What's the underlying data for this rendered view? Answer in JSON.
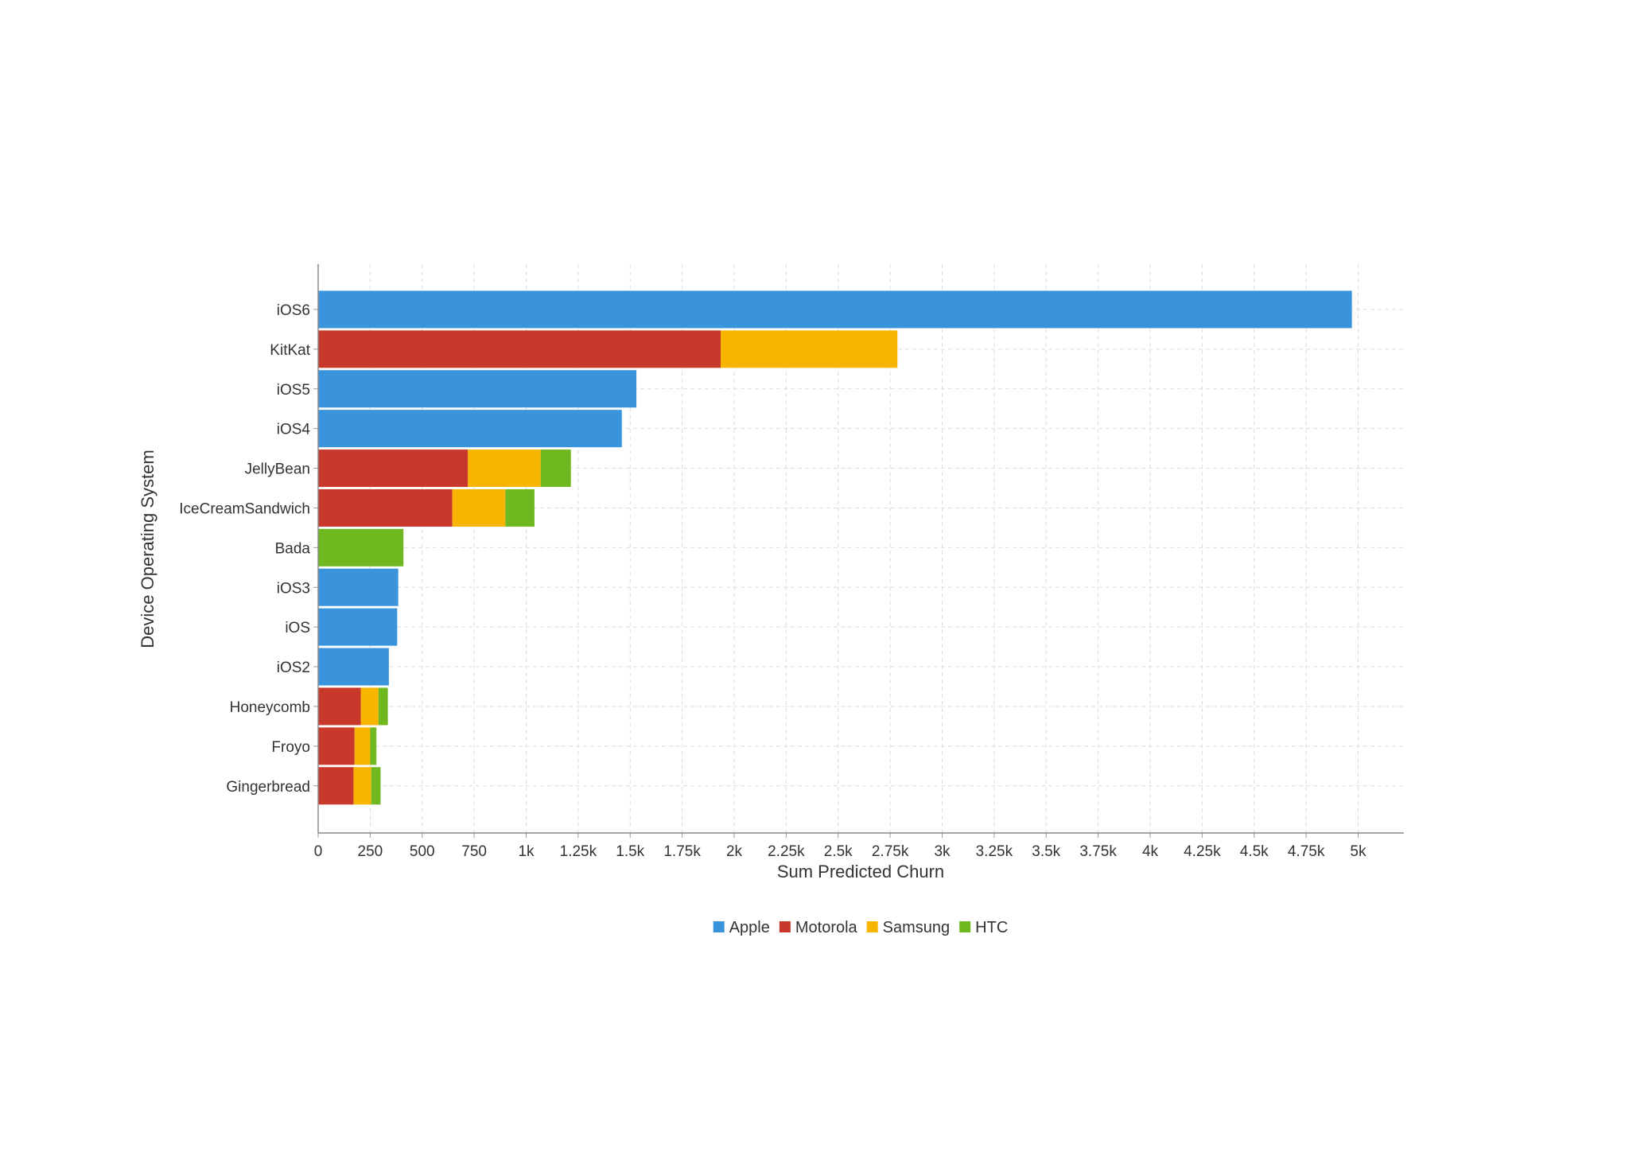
{
  "chart_data": {
    "type": "bar",
    "orientation": "horizontal",
    "stacked": true,
    "title": "",
    "xlabel": "Sum Predicted Churn",
    "ylabel": "Device Operating System",
    "xlim": [
      0,
      5220
    ],
    "xticks": [
      {
        "value": 0,
        "label": "0"
      },
      {
        "value": 250,
        "label": "250"
      },
      {
        "value": 500,
        "label": "500"
      },
      {
        "value": 750,
        "label": "750"
      },
      {
        "value": 1000,
        "label": "1k"
      },
      {
        "value": 1250,
        "label": "1.25k"
      },
      {
        "value": 1500,
        "label": "1.5k"
      },
      {
        "value": 1750,
        "label": "1.75k"
      },
      {
        "value": 2000,
        "label": "2k"
      },
      {
        "value": 2250,
        "label": "2.25k"
      },
      {
        "value": 2500,
        "label": "2.5k"
      },
      {
        "value": 2750,
        "label": "2.75k"
      },
      {
        "value": 3000,
        "label": "3k"
      },
      {
        "value": 3250,
        "label": "3.25k"
      },
      {
        "value": 3500,
        "label": "3.5k"
      },
      {
        "value": 3750,
        "label": "3.75k"
      },
      {
        "value": 4000,
        "label": "4k"
      },
      {
        "value": 4250,
        "label": "4.25k"
      },
      {
        "value": 4500,
        "label": "4.5k"
      },
      {
        "value": 4750,
        "label": "4.75k"
      },
      {
        "value": 5000,
        "label": "5k"
      }
    ],
    "grid": true,
    "legend_position": "bottom",
    "categories": [
      "iOS6",
      "KitKat",
      "iOS5",
      "iOS4",
      "JellyBean",
      "IceCreamSandwich",
      "Bada",
      "iOS3",
      "iOS",
      "iOS2",
      "Honeycomb",
      "Froyo",
      "Gingerbread"
    ],
    "series": [
      {
        "name": "Apple",
        "color": "#3a94dc",
        "values": [
          4970,
          0,
          1530,
          1460,
          0,
          0,
          0,
          385,
          380,
          340,
          0,
          0,
          0
        ]
      },
      {
        "name": "Motorola",
        "color": "#c8382b",
        "values": [
          0,
          1935,
          0,
          0,
          720,
          645,
          0,
          0,
          0,
          0,
          205,
          175,
          170
        ]
      },
      {
        "name": "Samsung",
        "color": "#f7b500",
        "values": [
          0,
          850,
          0,
          0,
          350,
          255,
          0,
          0,
          0,
          0,
          85,
          75,
          85
        ]
      },
      {
        "name": "HTC",
        "color": "#70b820",
        "values": [
          0,
          0,
          0,
          0,
          145,
          140,
          410,
          0,
          0,
          0,
          45,
          30,
          45
        ]
      }
    ]
  }
}
